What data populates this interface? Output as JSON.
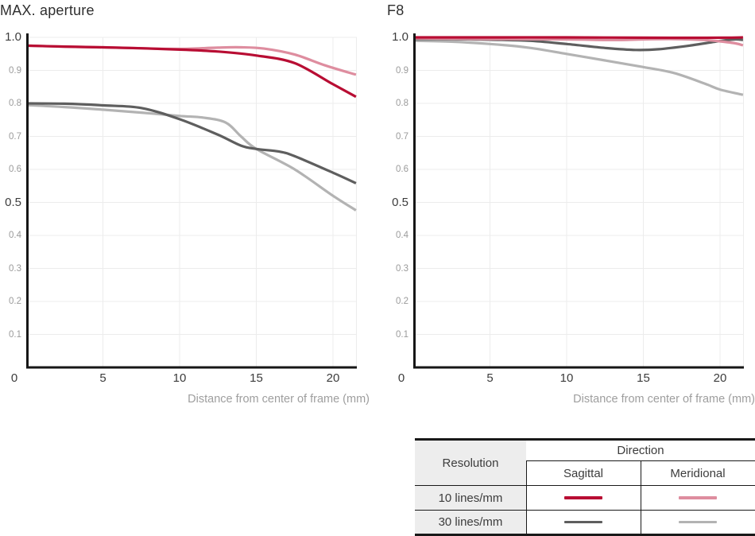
{
  "page": {
    "background": "#ffffff"
  },
  "colors": {
    "sagittal_10": "#b80d33",
    "meridional_10": "#de8d9f",
    "sagittal_30": "#5e5e5e",
    "meridional_30": "#b3b3b3",
    "grid": "#ececec",
    "spine": "#161616",
    "tick_major": "#3c3c3c",
    "tick_minor": "#9b9b9b",
    "axis_label": "#9e9e9e",
    "title": "#2f2f2f"
  },
  "chart_data": [
    {
      "type": "line",
      "title": "MAX. aperture",
      "xlabel": "Distance from center of frame (mm)",
      "xlim": [
        0,
        21.5
      ],
      "ylim": [
        0,
        1.0
      ],
      "grid": true,
      "legend_position": "separate-table-bottom-right",
      "xticks": [
        {
          "value": 0,
          "label": "0"
        },
        {
          "value": 5,
          "label": "5"
        },
        {
          "value": 10,
          "label": "10"
        },
        {
          "value": 15,
          "label": "15"
        },
        {
          "value": 20,
          "label": "20"
        }
      ],
      "yticks": [
        {
          "value": 1.0,
          "label": "1.0",
          "major": true
        },
        {
          "value": 0.9,
          "label": "0.9",
          "major": false
        },
        {
          "value": 0.8,
          "label": "0.8",
          "major": false
        },
        {
          "value": 0.7,
          "label": "0.7",
          "major": false
        },
        {
          "value": 0.6,
          "label": "0.6",
          "major": false
        },
        {
          "value": 0.5,
          "label": "0.5",
          "major": true
        },
        {
          "value": 0.4,
          "label": "0.4",
          "major": false
        },
        {
          "value": 0.3,
          "label": "0.3",
          "major": false
        },
        {
          "value": 0.2,
          "label": "0.2",
          "major": false
        },
        {
          "value": 0.1,
          "label": "0.1",
          "major": false
        }
      ],
      "series": [
        {
          "name": "10 lines/mm Sagittal",
          "color": "#b80d33",
          "width": 3.2,
          "x": [
            0,
            2.5,
            5,
            7.5,
            10,
            12.5,
            15,
            17.5,
            20,
            21.5
          ],
          "y": [
            0.975,
            0.972,
            0.97,
            0.967,
            0.963,
            0.957,
            0.945,
            0.922,
            0.858,
            0.82
          ]
        },
        {
          "name": "10 lines/mm Meridional",
          "color": "#de8d9f",
          "width": 3.2,
          "x": [
            0,
            2.5,
            5,
            7.5,
            10,
            12.5,
            14,
            15.5,
            17.5,
            19.5,
            21.5
          ],
          "y": [
            0.975,
            0.972,
            0.97,
            0.967,
            0.965,
            0.969,
            0.97,
            0.966,
            0.948,
            0.915,
            0.887
          ]
        },
        {
          "name": "30 lines/mm Sagittal",
          "color": "#5e5e5e",
          "width": 3.2,
          "x": [
            0,
            2.5,
            5,
            7.5,
            10,
            12.5,
            14,
            15,
            16.5,
            17.5,
            20,
            21.5
          ],
          "y": [
            0.8,
            0.799,
            0.794,
            0.786,
            0.752,
            0.705,
            0.672,
            0.662,
            0.654,
            0.64,
            0.59,
            0.558
          ]
        },
        {
          "name": "30 lines/mm Meridional",
          "color": "#b3b3b3",
          "width": 3.2,
          "x": [
            0,
            2.5,
            5,
            7.5,
            10,
            11.5,
            13,
            14,
            15,
            17.5,
            20,
            21.5
          ],
          "y": [
            0.795,
            0.789,
            0.781,
            0.772,
            0.762,
            0.757,
            0.742,
            0.7,
            0.662,
            0.6,
            0.52,
            0.476
          ]
        }
      ]
    },
    {
      "type": "line",
      "title": "F8",
      "xlabel": "Distance from center of frame (mm)",
      "xlim": [
        0,
        21.5
      ],
      "ylim": [
        0,
        1.0
      ],
      "grid": true,
      "legend_position": "separate-table-bottom-right",
      "xticks": [
        {
          "value": 0,
          "label": "0"
        },
        {
          "value": 5,
          "label": "5"
        },
        {
          "value": 10,
          "label": "10"
        },
        {
          "value": 15,
          "label": "15"
        },
        {
          "value": 20,
          "label": "20"
        }
      ],
      "yticks": [
        {
          "value": 1.0,
          "label": "1.0",
          "major": true
        },
        {
          "value": 0.9,
          "label": "0.9",
          "major": false
        },
        {
          "value": 0.8,
          "label": "0.8",
          "major": false
        },
        {
          "value": 0.7,
          "label": "0.7",
          "major": false
        },
        {
          "value": 0.6,
          "label": "0.6",
          "major": false
        },
        {
          "value": 0.5,
          "label": "0.5",
          "major": true
        },
        {
          "value": 0.4,
          "label": "0.4",
          "major": false
        },
        {
          "value": 0.3,
          "label": "0.3",
          "major": false
        },
        {
          "value": 0.2,
          "label": "0.2",
          "major": false
        },
        {
          "value": 0.1,
          "label": "0.1",
          "major": false
        }
      ],
      "series": [
        {
          "name": "10 lines/mm Sagittal",
          "color": "#b80d33",
          "width": 3.2,
          "x": [
            0,
            5,
            10,
            15,
            20,
            21.5
          ],
          "y": [
            1.0,
            1.0,
            1.0,
            0.999,
            0.999,
            1.0
          ]
        },
        {
          "name": "10 lines/mm Meridional",
          "color": "#de8d9f",
          "width": 3.2,
          "x": [
            0,
            2.5,
            5,
            10,
            13,
            15,
            17,
            19,
            20,
            21,
            21.5
          ],
          "y": [
            0.997,
            0.996,
            0.995,
            0.994,
            0.992,
            0.994,
            0.995,
            0.992,
            0.988,
            0.982,
            0.976
          ]
        },
        {
          "name": "30 lines/mm Sagittal",
          "color": "#5e5e5e",
          "width": 3.2,
          "x": [
            0,
            2.5,
            5,
            7.5,
            10,
            12.5,
            14.5,
            16,
            18,
            20,
            21,
            21.5
          ],
          "y": [
            0.995,
            0.995,
            0.993,
            0.99,
            0.98,
            0.968,
            0.962,
            0.964,
            0.975,
            0.989,
            0.994,
            0.992
          ]
        },
        {
          "name": "30 lines/mm Meridional",
          "color": "#b3b3b3",
          "width": 3.2,
          "x": [
            0,
            2.5,
            5,
            7.5,
            10,
            12.5,
            15,
            17,
            19,
            20,
            21.5
          ],
          "y": [
            0.99,
            0.987,
            0.98,
            0.969,
            0.95,
            0.93,
            0.91,
            0.892,
            0.86,
            0.842,
            0.826
          ]
        }
      ]
    }
  ],
  "legend_table": {
    "resolution_header": "Resolution",
    "direction_header": "Direction",
    "direction_columns": [
      "Sagittal",
      "Meridional"
    ],
    "rows": [
      {
        "label": "10 lines/mm",
        "sagittal_color": "#b80d33",
        "meridional_color": "#de8d9f"
      },
      {
        "label": "30 lines/mm",
        "sagittal_color": "#5e5e5e",
        "meridional_color": "#b3b3b3"
      }
    ]
  }
}
